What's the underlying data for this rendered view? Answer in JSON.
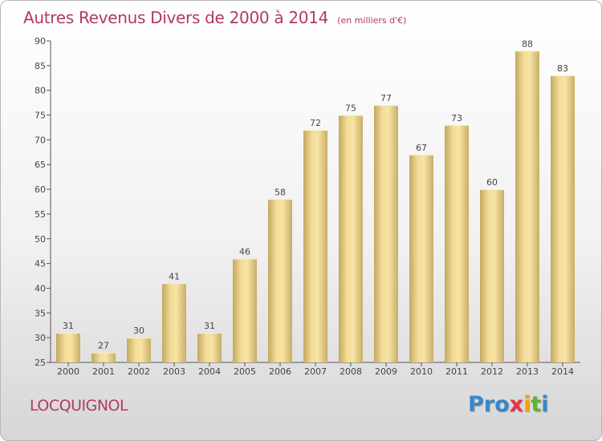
{
  "title": "Autres Revenus Divers de 2000 à 2014",
  "subtitle": "(en milliers d'€)",
  "commune": "LOCQUIGNOL",
  "logo": {
    "parts": [
      "Pro",
      "x",
      "i",
      "t",
      "i"
    ],
    "colors": [
      "#3a86c8",
      "#e8334a",
      "#f2a20c",
      "#5bb531",
      "#3a86c8"
    ]
  },
  "colors": {
    "bar_light": "#f7e4a4",
    "bar_dark": "#c9ad69",
    "title": "#b03a66",
    "axis": "#444444"
  },
  "chart_data": {
    "type": "bar",
    "categories": [
      "2000",
      "2001",
      "2002",
      "2003",
      "2004",
      "2005",
      "2006",
      "2007",
      "2008",
      "2009",
      "2010",
      "2011",
      "2012",
      "2013",
      "2014"
    ],
    "values": [
      31,
      27,
      30,
      41,
      31,
      46,
      58,
      72,
      75,
      77,
      67,
      73,
      60,
      88,
      83
    ],
    "ylim": [
      25,
      90
    ],
    "yticks": [
      25,
      30,
      35,
      40,
      45,
      50,
      55,
      60,
      65,
      70,
      75,
      80,
      85,
      90
    ],
    "grid": false
  }
}
